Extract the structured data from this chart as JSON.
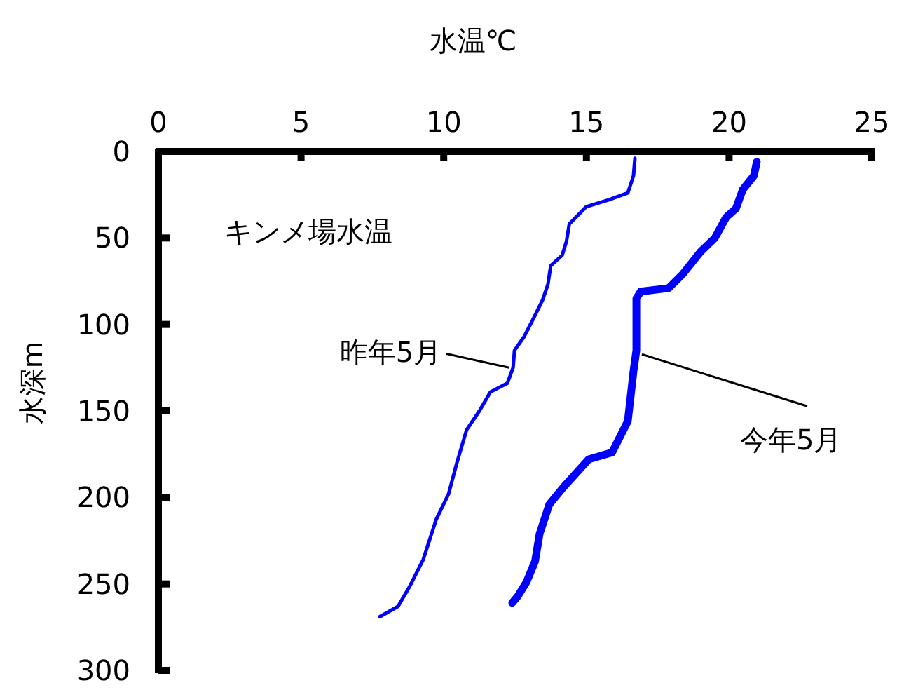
{
  "chart_data": {
    "type": "line",
    "xlabel": "水温℃",
    "ylabel": "水深m",
    "xlim": [
      0,
      25
    ],
    "xticks": [
      0,
      5,
      10,
      15,
      20,
      25
    ],
    "ylim": [
      300,
      0
    ],
    "yticks": [
      0,
      50,
      100,
      150,
      200,
      250,
      300
    ],
    "grid": false,
    "marker": "none",
    "line_style": "solid",
    "series": [
      {
        "name": "昨年5月",
        "color": "#0000ff",
        "x": [
          16.7,
          16.65,
          16.45,
          15.77,
          14.99,
          14.4,
          14.3,
          14.15,
          13.75,
          13.65,
          13.46,
          13.16,
          12.82,
          12.48,
          12.43,
          12.23,
          11.64,
          11.25,
          10.8,
          10.46,
          10.17,
          9.73,
          9.28,
          8.79,
          8.4,
          7.76
        ],
        "values": [
          4,
          14,
          24,
          28,
          32,
          42,
          52,
          60,
          66,
          77,
          86,
          96,
          107,
          115,
          125,
          134,
          139,
          150,
          161,
          180,
          198,
          213,
          236,
          252,
          263,
          269
        ]
      },
      {
        "name": "今年5月",
        "color": "#0000ff",
        "x": [
          20.97,
          20.87,
          20.48,
          20.24,
          19.9,
          19.5,
          19.0,
          18.37,
          17.88,
          16.9,
          16.75,
          16.75,
          16.65,
          16.45,
          15.9,
          15.08,
          14.2,
          13.7,
          13.36,
          13.2,
          12.9,
          12.6,
          12.4
        ],
        "values": [
          6,
          14,
          22,
          33,
          38,
          50,
          58,
          71,
          79,
          81,
          85,
          115,
          127,
          156,
          174,
          178,
          194,
          204,
          221,
          237,
          249,
          257,
          261
        ]
      }
    ],
    "annotations": [
      "キンメ場水温"
    ]
  }
}
